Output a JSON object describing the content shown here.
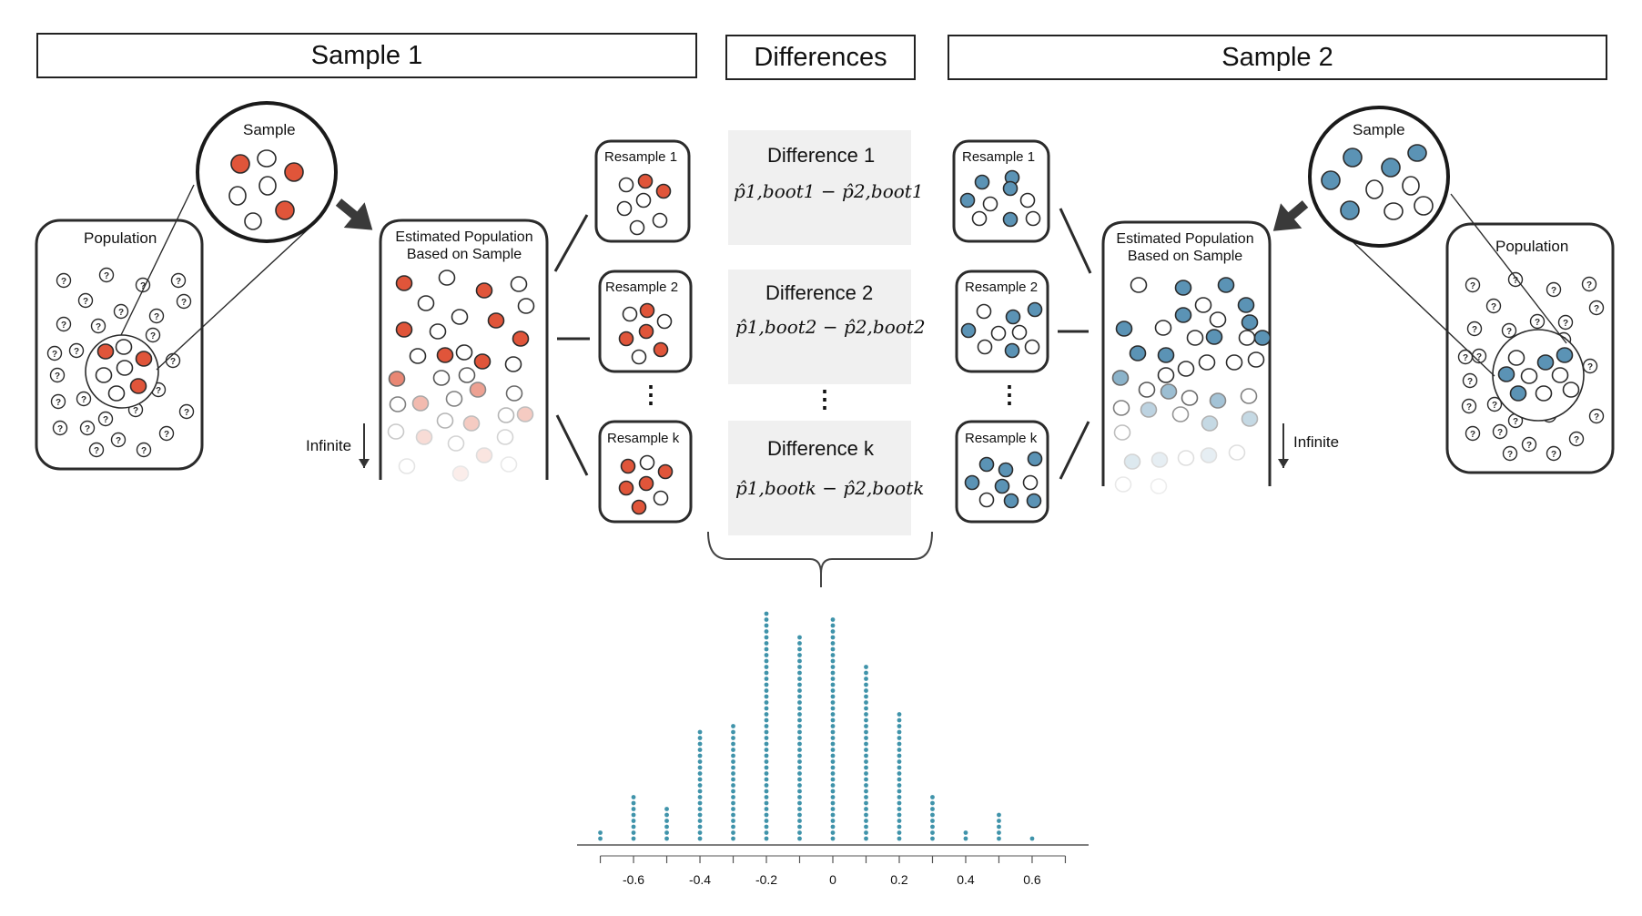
{
  "headers": {
    "sample1": "Sample 1",
    "differences": "Differences",
    "sample2": "Sample 2"
  },
  "sample1": {
    "sample_label": "Sample",
    "population_label": "Population",
    "estimated_population_label": "Estimated Population\nBased on Sample",
    "infinite_label": "Infinite",
    "resamples": [
      "Resample 1",
      "Resample 2",
      "Resample k"
    ],
    "color": "#e0553a"
  },
  "sample2": {
    "sample_label": "Sample",
    "population_label": "Population",
    "estimated_population_label": "Estimated Population\nBased on Sample",
    "infinite_label": "Infinite",
    "resamples": [
      "Resample 1",
      "Resample 2",
      "Resample k"
    ],
    "color": "#5b93b5"
  },
  "differences": [
    {
      "title": "Difference 1",
      "formula_left": "p̂1,boot1",
      "formula_right": "p̂2,boot1",
      "p1": "1,boot1",
      "p2": "2,boot1"
    },
    {
      "title": "Difference 2",
      "formula_left": "p̂1,boot2",
      "formula_right": "p̂2,boot2",
      "p1": "1,boot2",
      "p2": "2,boot2"
    },
    {
      "title": "Difference k",
      "formula_left": "p̂1,bootk",
      "formula_right": "p̂2,bootk",
      "p1": "1,bootk",
      "p2": "2,bootk"
    }
  ],
  "minus_sign": "−",
  "ellipsis": "⋮",
  "question_mark": "?",
  "chart_data": {
    "type": "scatter",
    "subtype": "dot plot",
    "x": [
      -0.7,
      -0.6,
      -0.5,
      -0.4,
      -0.3,
      -0.2,
      -0.1,
      0.0,
      0.1,
      0.2,
      0.3,
      0.4,
      0.5,
      0.6
    ],
    "counts": [
      2,
      8,
      6,
      19,
      20,
      39,
      35,
      38,
      30,
      22,
      8,
      2,
      5,
      1
    ],
    "tick_labels": [
      "-0.6",
      "-0.4",
      "-0.2",
      "0",
      "0.2",
      "0.4",
      "0.6"
    ],
    "tick_values": [
      -0.6,
      -0.4,
      -0.2,
      0,
      0.2,
      0.4,
      0.6
    ],
    "minor_ticks": [
      -0.7,
      -0.6,
      -0.5,
      -0.4,
      -0.3,
      -0.2,
      -0.1,
      0,
      0.1,
      0.2,
      0.3,
      0.4,
      0.5,
      0.6,
      0.7
    ],
    "xlim": [
      -0.77,
      0.77
    ],
    "grid": false,
    "dot_color": "#3f93aa"
  }
}
